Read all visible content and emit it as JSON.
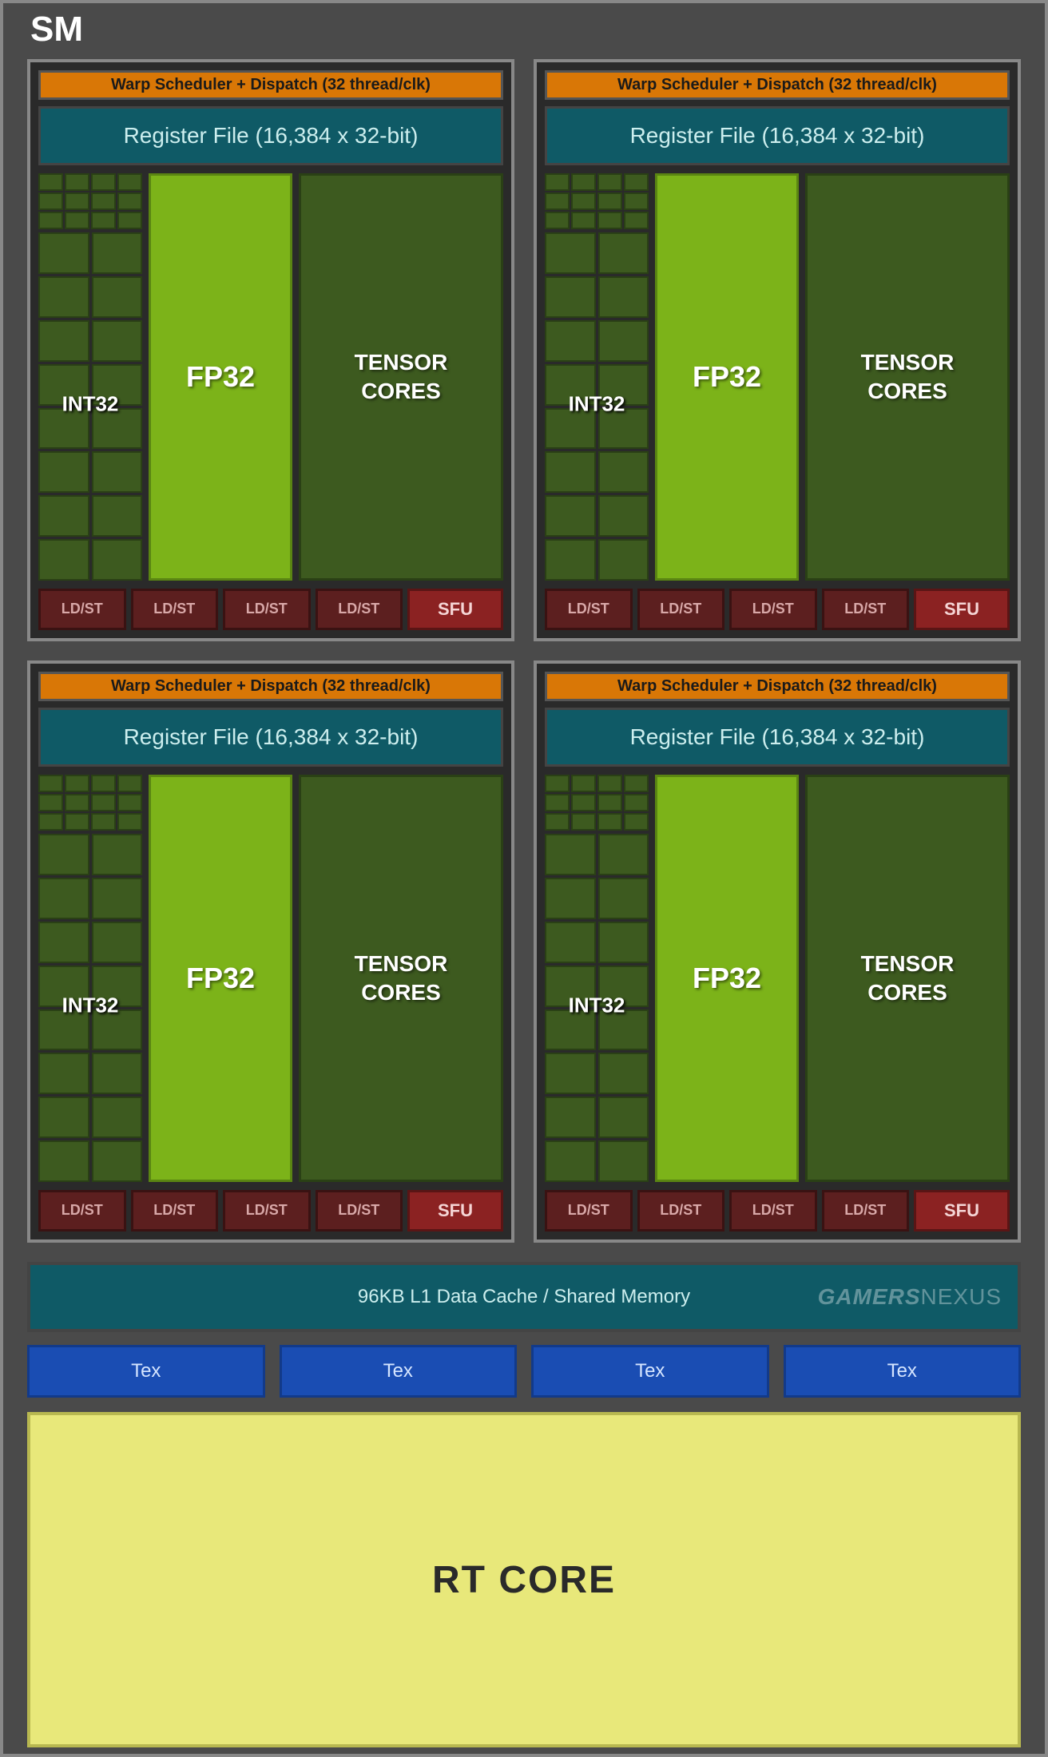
{
  "diagram": {
    "title": "SM",
    "type": "gpu-architecture-block-diagram",
    "background_color": "#4a4a4a",
    "border_color": "#888888",
    "partition": {
      "warp_label": "Warp Scheduler + Dispatch (32 thread/clk)",
      "warp_bg": "#d97706",
      "regfile_label": "Register File (16,384 x 32-bit)",
      "regfile_bg": "#0f5a66",
      "int32_label": "INT32",
      "int32_bg": "#3d5a1f",
      "fp32_label": "FP32",
      "fp32_bg": "#7cb319",
      "tensor_label": "TENSOR\nCORES",
      "tensor_bg": "#3d5a1f",
      "ldst_label": "LD/ST",
      "ldst_bg": "#5c1f1f",
      "ldst_count": 4,
      "sfu_label": "SFU",
      "sfu_bg": "#8b2222"
    },
    "l1_cache_label": "96KB L1 Data Cache / Shared Memory",
    "l1_cache_bg": "#0f5a66",
    "watermark_a": "GAMERS",
    "watermark_b": "NEXUS",
    "tex_label": "Tex",
    "tex_bg": "#1a4db3",
    "tex_count": 4,
    "rt_core_label": "RT CORE",
    "rt_core_bg": "#e8e87a",
    "colors": {
      "text_white": "#ffffff",
      "text_teal": "#cceeee",
      "text_dark": "#2a2a2a"
    }
  }
}
